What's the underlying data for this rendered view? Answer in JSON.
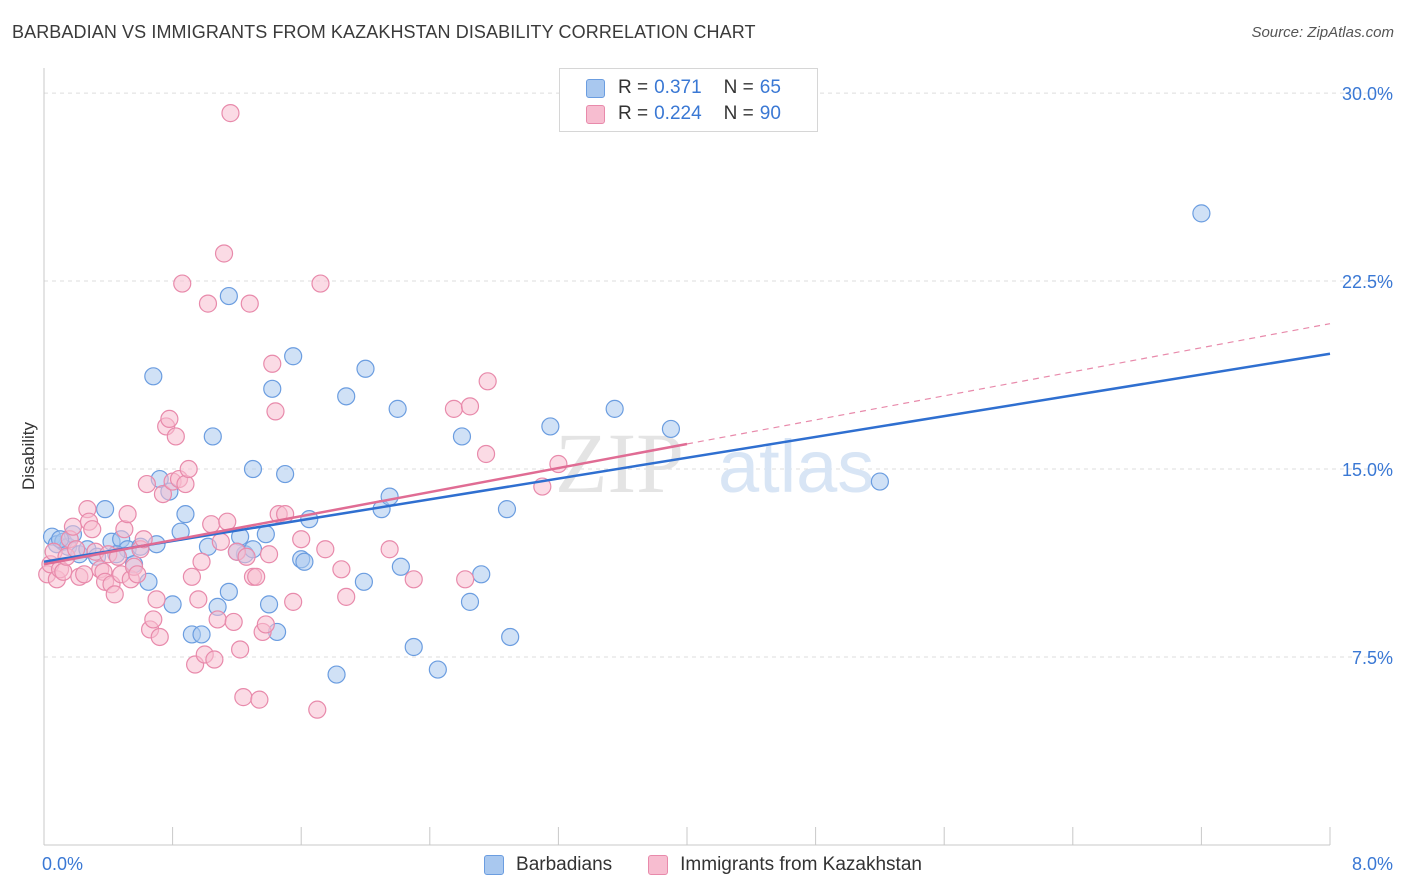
{
  "title": "BARBADIAN VS IMMIGRANTS FROM KAZAKHSTAN DISABILITY CORRELATION CHART",
  "source": "Source: ZipAtlas.com",
  "watermark": {
    "zip": "ZIP",
    "atlas": "atlas"
  },
  "legend_top": [
    {
      "r_label": "R =",
      "r_value": "0.371",
      "n_label": "N =",
      "n_value": "65",
      "color": "#a9c8ef",
      "stroke": "#6b9de0"
    },
    {
      "r_label": "R =",
      "r_value": "0.224",
      "n_label": "N =",
      "n_value": "90",
      "color": "#f7bdd0",
      "stroke": "#e88aab"
    }
  ],
  "legend_bottom": [
    {
      "label": "Barbadians",
      "color": "#a9c8ef",
      "stroke": "#6b9de0"
    },
    {
      "label": "Immigrants from Kazakhstan",
      "color": "#f7bdd0",
      "stroke": "#e88aab"
    }
  ],
  "chart_data": {
    "type": "scatter",
    "title": "BARBADIAN VS IMMIGRANTS FROM KAZAKHSTAN DISABILITY CORRELATION CHART",
    "xlabel": "",
    "ylabel": "Disability",
    "xlim": [
      0,
      8
    ],
    "ylim": [
      0,
      31
    ],
    "x_tick_labels": [
      {
        "value": 0,
        "label": "0.0%"
      },
      {
        "value": 8,
        "label": "8.0%"
      }
    ],
    "y_tick_labels": [
      {
        "value": 7.5,
        "label": "7.5%"
      },
      {
        "value": 15,
        "label": "15.0%"
      },
      {
        "value": 22.5,
        "label": "22.5%"
      },
      {
        "value": 30,
        "label": "30.0%"
      }
    ],
    "grid": true,
    "series": [
      {
        "name": "Barbadians",
        "color": "#a9c8ef",
        "stroke": "#6b9de0",
        "trend": {
          "x": [
            0,
            8
          ],
          "y": [
            11.3,
            19.6
          ],
          "color": "#2f6fd0"
        },
        "points": [
          [
            0.05,
            12.3
          ],
          [
            0.08,
            12.0
          ],
          [
            0.12,
            12.1
          ],
          [
            0.15,
            11.9
          ],
          [
            0.18,
            12.4
          ],
          [
            0.22,
            11.6
          ],
          [
            0.27,
            11.8
          ],
          [
            0.33,
            11.5
          ],
          [
            0.38,
            13.4
          ],
          [
            0.42,
            12.1
          ],
          [
            0.48,
            12.2
          ],
          [
            0.52,
            11.8
          ],
          [
            0.56,
            11.2
          ],
          [
            0.6,
            11.9
          ],
          [
            0.65,
            10.5
          ],
          [
            0.68,
            18.7
          ],
          [
            0.72,
            14.6
          ],
          [
            0.78,
            14.1
          ],
          [
            0.8,
            9.6
          ],
          [
            0.85,
            12.5
          ],
          [
            0.88,
            13.2
          ],
          [
            0.92,
            8.4
          ],
          [
            0.98,
            8.4
          ],
          [
            1.02,
            11.9
          ],
          [
            1.05,
            16.3
          ],
          [
            1.08,
            9.5
          ],
          [
            1.15,
            10.1
          ],
          [
            1.15,
            21.9
          ],
          [
            1.22,
            12.3
          ],
          [
            1.25,
            11.6
          ],
          [
            1.3,
            15.0
          ],
          [
            1.3,
            11.8
          ],
          [
            1.38,
            12.4
          ],
          [
            1.4,
            9.6
          ],
          [
            1.42,
            18.2
          ],
          [
            1.45,
            8.5
          ],
          [
            1.5,
            14.8
          ],
          [
            1.55,
            19.5
          ],
          [
            1.6,
            11.4
          ],
          [
            1.62,
            11.3
          ],
          [
            1.65,
            13.0
          ],
          [
            1.82,
            6.8
          ],
          [
            1.88,
            17.9
          ],
          [
            1.99,
            10.5
          ],
          [
            2.0,
            19.0
          ],
          [
            2.1,
            13.4
          ],
          [
            2.15,
            13.9
          ],
          [
            2.2,
            17.4
          ],
          [
            2.22,
            11.1
          ],
          [
            2.3,
            7.9
          ],
          [
            2.45,
            7.0
          ],
          [
            2.6,
            16.3
          ],
          [
            2.65,
            9.7
          ],
          [
            2.72,
            10.8
          ],
          [
            2.88,
            13.4
          ],
          [
            2.9,
            8.3
          ],
          [
            3.15,
            16.7
          ],
          [
            3.55,
            17.4
          ],
          [
            3.9,
            16.6
          ],
          [
            5.2,
            14.5
          ],
          [
            7.2,
            25.2
          ],
          [
            0.1,
            12.2
          ],
          [
            0.45,
            11.6
          ],
          [
            0.7,
            12.0
          ],
          [
            1.2,
            11.7
          ]
        ]
      },
      {
        "name": "Immigrants from Kazakhstan",
        "color": "#f7bdd0",
        "stroke": "#e88aab",
        "trend": {
          "x": [
            0,
            4.0
          ],
          "y": [
            11.2,
            16.0
          ],
          "color": "#e06c94"
        },
        "dashed_extension": {
          "x": [
            4.0,
            8.0
          ],
          "y": [
            16.0,
            20.8
          ],
          "color": "#e88aab"
        },
        "points": [
          [
            0.02,
            10.8
          ],
          [
            0.04,
            11.2
          ],
          [
            0.06,
            11.7
          ],
          [
            0.08,
            10.6
          ],
          [
            0.1,
            11.0
          ],
          [
            0.12,
            10.9
          ],
          [
            0.14,
            11.5
          ],
          [
            0.16,
            12.2
          ],
          [
            0.18,
            12.7
          ],
          [
            0.2,
            11.8
          ],
          [
            0.22,
            10.7
          ],
          [
            0.25,
            10.8
          ],
          [
            0.27,
            13.4
          ],
          [
            0.28,
            12.9
          ],
          [
            0.3,
            12.6
          ],
          [
            0.32,
            11.7
          ],
          [
            0.35,
            11.0
          ],
          [
            0.37,
            10.9
          ],
          [
            0.38,
            10.5
          ],
          [
            0.4,
            11.6
          ],
          [
            0.42,
            10.4
          ],
          [
            0.44,
            10.0
          ],
          [
            0.46,
            11.5
          ],
          [
            0.48,
            10.8
          ],
          [
            0.5,
            12.6
          ],
          [
            0.52,
            13.2
          ],
          [
            0.54,
            10.6
          ],
          [
            0.56,
            11.1
          ],
          [
            0.58,
            10.8
          ],
          [
            0.6,
            11.8
          ],
          [
            0.62,
            12.2
          ],
          [
            0.64,
            14.4
          ],
          [
            0.66,
            8.6
          ],
          [
            0.68,
            9.0
          ],
          [
            0.7,
            9.8
          ],
          [
            0.72,
            8.3
          ],
          [
            0.74,
            14.0
          ],
          [
            0.76,
            16.7
          ],
          [
            0.78,
            17.0
          ],
          [
            0.8,
            14.5
          ],
          [
            0.82,
            16.3
          ],
          [
            0.84,
            14.6
          ],
          [
            0.86,
            22.4
          ],
          [
            0.88,
            14.4
          ],
          [
            0.9,
            15.0
          ],
          [
            0.92,
            10.7
          ],
          [
            0.94,
            7.2
          ],
          [
            0.96,
            9.8
          ],
          [
            0.98,
            11.3
          ],
          [
            1.0,
            7.6
          ],
          [
            1.02,
            21.6
          ],
          [
            1.04,
            12.8
          ],
          [
            1.06,
            7.4
          ],
          [
            1.08,
            9.0
          ],
          [
            1.1,
            12.1
          ],
          [
            1.12,
            23.6
          ],
          [
            1.14,
            12.9
          ],
          [
            1.16,
            29.2
          ],
          [
            1.18,
            8.9
          ],
          [
            1.2,
            11.7
          ],
          [
            1.22,
            7.8
          ],
          [
            1.24,
            5.9
          ],
          [
            1.26,
            11.5
          ],
          [
            1.28,
            21.6
          ],
          [
            1.3,
            10.7
          ],
          [
            1.32,
            10.7
          ],
          [
            1.34,
            5.8
          ],
          [
            1.36,
            8.5
          ],
          [
            1.38,
            8.8
          ],
          [
            1.4,
            11.6
          ],
          [
            1.42,
            19.2
          ],
          [
            1.44,
            17.3
          ],
          [
            1.46,
            13.2
          ],
          [
            1.5,
            13.2
          ],
          [
            1.55,
            9.7
          ],
          [
            1.6,
            12.2
          ],
          [
            1.7,
            5.4
          ],
          [
            1.72,
            22.4
          ],
          [
            1.75,
            11.8
          ],
          [
            1.85,
            11.0
          ],
          [
            1.88,
            9.9
          ],
          [
            2.15,
            11.8
          ],
          [
            2.3,
            10.6
          ],
          [
            2.55,
            17.4
          ],
          [
            2.62,
            10.6
          ],
          [
            2.65,
            17.5
          ],
          [
            2.75,
            15.6
          ],
          [
            2.76,
            18.5
          ],
          [
            3.1,
            14.3
          ],
          [
            3.2,
            15.2
          ]
        ]
      }
    ]
  }
}
